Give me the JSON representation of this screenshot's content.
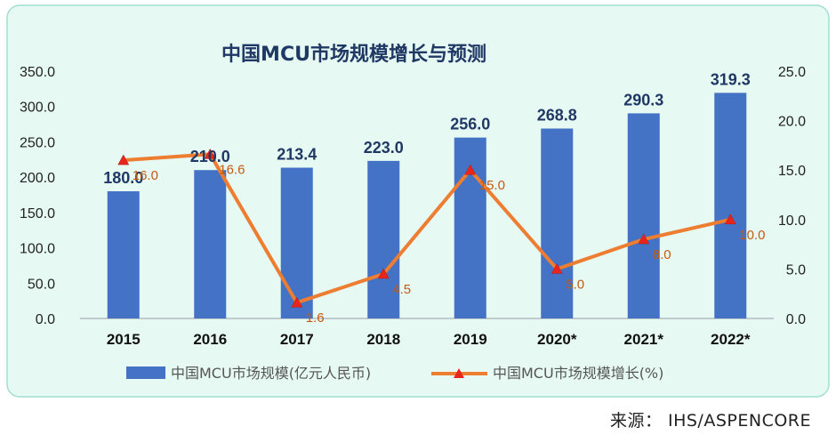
{
  "chart_data": {
    "type": "bar",
    "title": "中国MCU市场规模增长与预测",
    "categories": [
      "2015",
      "2016",
      "2017",
      "2018",
      "2019",
      "2020*",
      "2021*",
      "2022*"
    ],
    "series": [
      {
        "name": "中国MCU市场规模(亿元人民币)",
        "type": "bar",
        "axis": "left",
        "values": [
          180.0,
          210.0,
          213.4,
          223.0,
          256.0,
          268.8,
          290.3,
          319.3
        ],
        "labels": [
          "180.0",
          "210.0",
          "213.4",
          "223.0",
          "256.0",
          "268.8",
          "290.3",
          "319.3"
        ]
      },
      {
        "name": "中国MCU市场规模增长(%)",
        "type": "line",
        "axis": "right",
        "values": [
          16.0,
          16.6,
          1.6,
          4.5,
          15.0,
          5.0,
          8.0,
          10.0
        ],
        "labels": [
          "16.0",
          "16.6",
          "1.6",
          "4.5",
          "15.0",
          "5.0",
          "8.0",
          "10.0"
        ]
      }
    ],
    "ylim": [
      0,
      350
    ],
    "y2lim": [
      0,
      25
    ],
    "yticks": [
      "0.0",
      "50.0",
      "100.0",
      "150.0",
      "200.0",
      "250.0",
      "300.0",
      "350.0"
    ],
    "y2ticks": [
      "0.0",
      "5.0",
      "10.0",
      "15.0",
      "20.0",
      "25.0"
    ],
    "grid": false,
    "legend_position": "bottom",
    "colors": {
      "bar": "#4472C4",
      "line": "#ED7D31",
      "marker": "#E8251C",
      "bar_label": "#1F3864",
      "line_label": "#C55A11",
      "title": "#1F3864",
      "background": "#E6F9F3",
      "frame": "#9FDFD0"
    }
  },
  "source_text": "来源： IHS/ASPENCORE"
}
